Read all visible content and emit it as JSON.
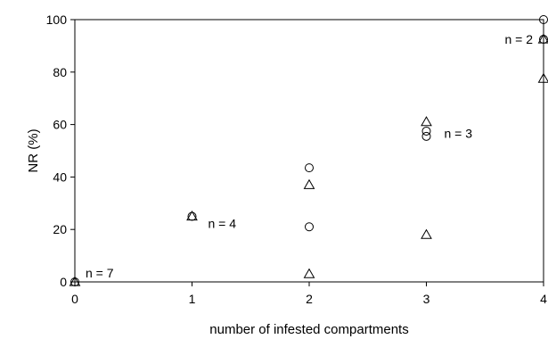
{
  "chart_data": {
    "type": "scatter",
    "title": "",
    "xlabel": "number of infested compartments",
    "ylabel": "NR (%)",
    "xlim": [
      0,
      4
    ],
    "ylim": [
      0,
      100
    ],
    "xticks": [
      0,
      1,
      2,
      3,
      4
    ],
    "yticks": [
      0,
      20,
      40,
      60,
      80,
      100
    ],
    "grid": false,
    "series": [
      {
        "marker": "circle",
        "points": [
          {
            "x": 0,
            "y": 0
          },
          {
            "x": 1,
            "y": 25
          },
          {
            "x": 2,
            "y": 43.5
          },
          {
            "x": 2,
            "y": 21
          },
          {
            "x": 3,
            "y": 57.5
          },
          {
            "x": 3,
            "y": 55.5
          },
          {
            "x": 4,
            "y": 100
          },
          {
            "x": 4,
            "y": 92.5
          }
        ]
      },
      {
        "marker": "triangle",
        "points": [
          {
            "x": 0,
            "y": 0
          },
          {
            "x": 1,
            "y": 25
          },
          {
            "x": 2,
            "y": 37
          },
          {
            "x": 2,
            "y": 3
          },
          {
            "x": 3,
            "y": 61
          },
          {
            "x": 3,
            "y": 18
          },
          {
            "x": 4,
            "y": 92.5
          },
          {
            "x": 4,
            "y": 77.5
          }
        ]
      }
    ],
    "annotations": [
      {
        "text": "n = 7",
        "x": 0,
        "y": 0
      },
      {
        "text": "n = 4",
        "x": 1,
        "y": 25
      },
      {
        "text": "n = 3",
        "x": 3,
        "y": 59
      },
      {
        "text": "n = 2",
        "x": 4,
        "y": 92.5
      }
    ]
  }
}
